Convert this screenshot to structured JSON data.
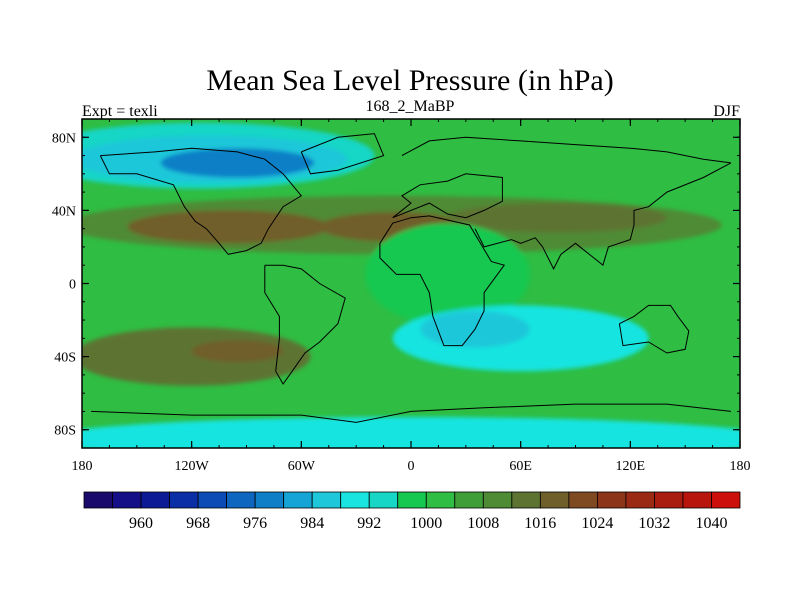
{
  "chart_data": {
    "type": "filled-contour-map",
    "title": "Mean Sea Level Pressure (in hPa)",
    "subtitle_left": "Expt = texli",
    "subtitle_center": "168_2_MaBP",
    "subtitle_right": "DJF",
    "variable": "Mean Sea Level Pressure",
    "units": "hPa",
    "season": "DJF",
    "experiment": "texli",
    "xlim": [
      -180,
      180
    ],
    "ylim": [
      -90,
      90
    ],
    "x_ticks": [
      {
        "value": -180,
        "label": "180"
      },
      {
        "value": -120,
        "label": "120W"
      },
      {
        "value": -60,
        "label": "60W"
      },
      {
        "value": 0,
        "label": "0"
      },
      {
        "value": 60,
        "label": "60E"
      },
      {
        "value": 120,
        "label": "120E"
      },
      {
        "value": 180,
        "label": "180"
      }
    ],
    "y_ticks": [
      {
        "value": 80,
        "label": "80N"
      },
      {
        "value": 40,
        "label": "40N"
      },
      {
        "value": 0,
        "label": "0"
      },
      {
        "value": -40,
        "label": "40S"
      },
      {
        "value": -80,
        "label": "80S"
      }
    ],
    "contour_levels": [
      956,
      960,
      964,
      968,
      972,
      976,
      980,
      984,
      988,
      992,
      996,
      1000,
      1004,
      1008,
      1012,
      1016,
      1020,
      1024,
      1028,
      1032,
      1036,
      1040,
      1044
    ],
    "colorbar_labels": [
      "960",
      "968",
      "976",
      "984",
      "992",
      "1000",
      "1008",
      "1016",
      "1024",
      "1032",
      "1040"
    ],
    "colors": [
      "#1a0a6b",
      "#140f86",
      "#0d1a96",
      "#0a2ea6",
      "#0c4bb6",
      "#0e66bf",
      "#0f7fc7",
      "#16a3d5",
      "#1ec7d9",
      "#19e4e0",
      "#18d6c6",
      "#15c84f",
      "#2fbd43",
      "#3f9e37",
      "#4f8a34",
      "#5d7332",
      "#6f5f2b",
      "#7f4a21",
      "#8d3518",
      "#9a2a14",
      "#a81d10",
      "#b8150d",
      "#cc0f0a"
    ],
    "pressure_field": {
      "background": 1002,
      "features": [
        {
          "name": "north-pacific-low-outer",
          "lon": -115,
          "lat": 70,
          "rx": 95,
          "ry": 18,
          "value": 994
        },
        {
          "name": "north-pacific-low-mid",
          "lon": -110,
          "lat": 68,
          "rx": 75,
          "ry": 13,
          "value": 986
        },
        {
          "name": "north-pacific-low-core",
          "lon": -95,
          "lat": 66,
          "rx": 42,
          "ry": 8,
          "value": 976
        },
        {
          "name": "subtropical-high-north",
          "lon": -10,
          "lat": 32,
          "rx": 180,
          "ry": 16,
          "value": 1010
        },
        {
          "name": "subtropical-high-north-pacific",
          "lon": -100,
          "lat": 31,
          "rx": 55,
          "ry": 9,
          "value": 1016
        },
        {
          "name": "subtropical-high-north-atlantic",
          "lon": -10,
          "lat": 31,
          "rx": 40,
          "ry": 8,
          "value": 1016
        },
        {
          "name": "subtropical-high-asia",
          "lon": 80,
          "lat": 36,
          "rx": 60,
          "ry": 8,
          "value": 1014
        },
        {
          "name": "tropical-low-africa",
          "lon": 20,
          "lat": 5,
          "rx": 45,
          "ry": 28,
          "value": 998
        },
        {
          "name": "monsoon-low",
          "lon": 60,
          "lat": -30,
          "rx": 70,
          "ry": 18,
          "value": 990
        },
        {
          "name": "monsoon-low-core",
          "lon": 35,
          "lat": -25,
          "rx": 30,
          "ry": 10,
          "value": 986
        },
        {
          "name": "subtropical-high-south",
          "lon": -120,
          "lat": -40,
          "rx": 65,
          "ry": 16,
          "value": 1012
        },
        {
          "name": "subtropical-high-south-core",
          "lon": -95,
          "lat": -37,
          "rx": 25,
          "ry": 6,
          "value": 1018
        },
        {
          "name": "southern-ocean-low",
          "lon": 0,
          "lat": -85,
          "rx": 200,
          "ry": 12,
          "value": 988
        }
      ]
    }
  }
}
